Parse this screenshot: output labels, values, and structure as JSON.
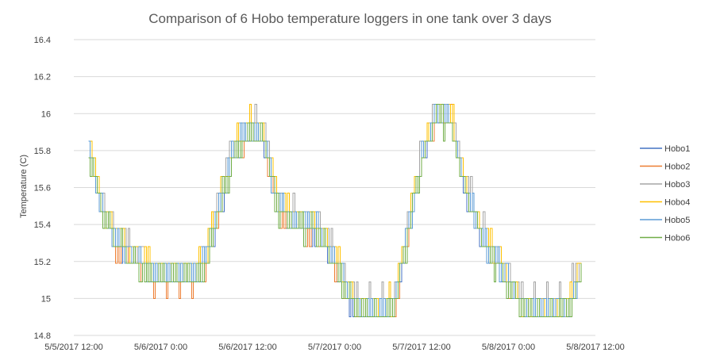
{
  "chart_data": {
    "type": "line",
    "title": "Comparison of 6 Hobo temperature loggers in one tank over 3 days",
    "xlabel": "",
    "ylabel": "Temperature  (C)",
    "x_ticks": [
      "5/5/2017 12:00",
      "5/6/2017 0:00",
      "5/6/2017 12:00",
      "5/7/2017 0:00",
      "5/7/2017 12:00",
      "5/8/2017 0:00",
      "5/8/2017 12:00"
    ],
    "x_range_hours": [
      0,
      72
    ],
    "ylim": [
      14.8,
      16.4
    ],
    "y_ticks": [
      "16.4",
      "16.2",
      "16",
      "15.8",
      "15.6",
      "15.4",
      "15.2",
      "15",
      "14.8"
    ],
    "grid": true,
    "legend_position": "right",
    "step_levels": [
      14.9,
      15.0,
      15.09,
      15.19,
      15.28,
      15.38,
      15.47,
      15.57,
      15.66,
      15.76,
      15.85,
      15.95,
      16.05,
      16.14
    ],
    "hours": [
      2.0,
      4.0,
      6.0,
      8.0,
      10.0,
      12.0,
      14.0,
      16.0,
      18.0,
      20.0,
      22.0,
      24.0,
      26.0,
      28.0,
      30.0,
      32.0,
      34.0,
      36.0,
      38.0,
      40.0,
      42.0,
      44.0,
      46.0,
      48.0,
      50.0,
      52.0,
      54.0,
      56.0,
      58.0,
      60.0,
      62.0,
      64.0,
      66.0,
      68.0,
      70.0
    ],
    "base_temperature": [
      15.8,
      15.45,
      15.3,
      15.22,
      15.15,
      15.12,
      15.12,
      15.12,
      15.18,
      15.5,
      15.78,
      15.92,
      15.88,
      15.5,
      15.42,
      15.4,
      15.35,
      15.2,
      15.0,
      14.93,
      14.92,
      14.95,
      15.35,
      15.75,
      16.0,
      15.95,
      15.6,
      15.35,
      15.22,
      15.08,
      14.95,
      14.93,
      14.93,
      14.95,
      15.15
    ],
    "series": [
      {
        "name": "Hobo1",
        "color": "#4472c4",
        "offset": 0.0
      },
      {
        "name": "Hobo2",
        "color": "#ed7d31",
        "offset": -0.02
      },
      {
        "name": "Hobo3",
        "color": "#a5a5a5",
        "offset": 0.05
      },
      {
        "name": "Hobo4",
        "color": "#ffc000",
        "offset": 0.04
      },
      {
        "name": "Hobo5",
        "color": "#5b9bd5",
        "offset": 0.01
      },
      {
        "name": "Hobo6",
        "color": "#70ad47",
        "offset": -0.01
      }
    ]
  }
}
